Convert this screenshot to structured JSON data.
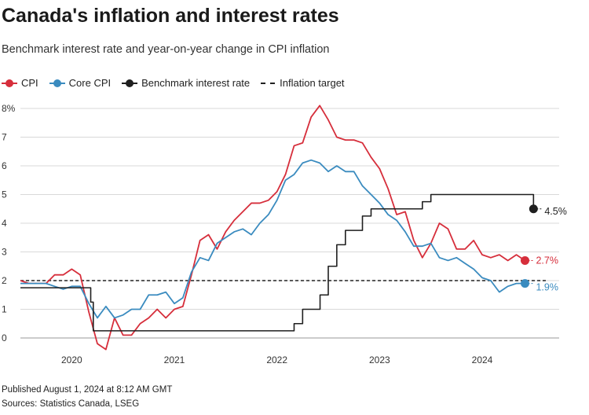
{
  "header": {
    "title": "Canada's inflation and interest rates",
    "subtitle": "Benchmark interest rate and year-on-year change in CPI inflation"
  },
  "legend": {
    "cpi": "CPI",
    "core_cpi": "Core CPI",
    "benchmark": "Benchmark interest rate",
    "target": "Inflation target"
  },
  "colors": {
    "cpi": "#d62e3b",
    "core_cpi": "#3a8bbf",
    "benchmark": "#1f1f1f",
    "target": "#222222",
    "grid": "#d9d9d9"
  },
  "footer": {
    "published": "Published August 1, 2024 at 8:12 AM GMT",
    "sources": "Sources: Statistics Canada, LSEG"
  },
  "chart_data": {
    "type": "line",
    "title": "Canada's inflation and interest rates",
    "subtitle": "Benchmark interest rate and year-on-year change in CPI inflation",
    "xlabel": "",
    "ylabel": "",
    "xlim": [
      2019.5,
      2024.75
    ],
    "ylim": [
      0,
      8
    ],
    "y_ticks": [
      0,
      1,
      2,
      3,
      4,
      5,
      6,
      7,
      8
    ],
    "y_tick_labels": [
      "0",
      "1",
      "2",
      "3",
      "4",
      "5",
      "6",
      "7",
      "8%"
    ],
    "x_ticks": [
      2020,
      2021,
      2022,
      2023,
      2024
    ],
    "x_tick_labels": [
      "2020",
      "2021",
      "2022",
      "2023",
      "2024"
    ],
    "grid": true,
    "legend_position": "top-left",
    "inflation_target": 2,
    "series": [
      {
        "name": "CPI",
        "kind": "line",
        "x": [
          2019.5,
          2019.583,
          2019.667,
          2019.75,
          2019.833,
          2019.917,
          2020.0,
          2020.083,
          2020.167,
          2020.25,
          2020.333,
          2020.417,
          2020.5,
          2020.583,
          2020.667,
          2020.75,
          2020.833,
          2020.917,
          2021.0,
          2021.083,
          2021.167,
          2021.25,
          2021.333,
          2021.417,
          2021.5,
          2021.583,
          2021.667,
          2021.75,
          2021.833,
          2021.917,
          2022.0,
          2022.083,
          2022.167,
          2022.25,
          2022.333,
          2022.417,
          2022.5,
          2022.583,
          2022.667,
          2022.75,
          2022.833,
          2022.917,
          2023.0,
          2023.083,
          2023.167,
          2023.25,
          2023.333,
          2023.417,
          2023.5,
          2023.583,
          2023.667,
          2023.75,
          2023.833,
          2023.917,
          2024.0,
          2024.083,
          2024.167,
          2024.25,
          2024.333,
          2024.417
        ],
        "y": [
          2.0,
          1.9,
          1.9,
          1.9,
          2.2,
          2.2,
          2.4,
          2.2,
          0.9,
          -0.2,
          -0.4,
          0.7,
          0.1,
          0.1,
          0.5,
          0.7,
          1.0,
          0.7,
          1.0,
          1.1,
          2.2,
          3.4,
          3.6,
          3.1,
          3.7,
          4.1,
          4.4,
          4.7,
          4.7,
          4.8,
          5.1,
          5.7,
          6.7,
          6.8,
          7.7,
          8.1,
          7.6,
          7.0,
          6.9,
          6.9,
          6.8,
          6.3,
          5.9,
          5.2,
          4.3,
          4.4,
          3.4,
          2.8,
          3.3,
          4.0,
          3.8,
          3.1,
          3.1,
          3.4,
          2.9,
          2.8,
          2.9,
          2.7,
          2.9,
          2.7
        ],
        "last_label": "2.7%"
      },
      {
        "name": "Core CPI",
        "kind": "line",
        "x": [
          2019.5,
          2019.583,
          2019.667,
          2019.75,
          2019.833,
          2019.917,
          2020.0,
          2020.083,
          2020.167,
          2020.25,
          2020.333,
          2020.417,
          2020.5,
          2020.583,
          2020.667,
          2020.75,
          2020.833,
          2020.917,
          2021.0,
          2021.083,
          2021.167,
          2021.25,
          2021.333,
          2021.417,
          2021.5,
          2021.583,
          2021.667,
          2021.75,
          2021.833,
          2021.917,
          2022.0,
          2022.083,
          2022.167,
          2022.25,
          2022.333,
          2022.417,
          2022.5,
          2022.583,
          2022.667,
          2022.75,
          2022.833,
          2022.917,
          2023.0,
          2023.083,
          2023.167,
          2023.25,
          2023.333,
          2023.417,
          2023.5,
          2023.583,
          2023.667,
          2023.75,
          2023.833,
          2023.917,
          2024.0,
          2024.083,
          2024.167,
          2024.25,
          2024.333,
          2024.417
        ],
        "y": [
          1.9,
          1.9,
          1.9,
          1.9,
          1.8,
          1.7,
          1.8,
          1.8,
          1.2,
          0.7,
          1.1,
          0.7,
          0.8,
          1.0,
          1.0,
          1.5,
          1.5,
          1.6,
          1.2,
          1.4,
          2.3,
          2.8,
          2.7,
          3.3,
          3.5,
          3.7,
          3.8,
          3.6,
          4.0,
          4.3,
          4.8,
          5.5,
          5.7,
          6.1,
          6.2,
          6.1,
          5.8,
          6.0,
          5.8,
          5.8,
          5.3,
          5.0,
          4.7,
          4.3,
          4.1,
          3.7,
          3.2,
          3.2,
          3.3,
          2.8,
          2.7,
          2.8,
          2.6,
          2.4,
          2.1,
          2.0,
          1.6,
          1.8,
          1.9,
          1.9
        ],
        "last_label": "1.9%"
      },
      {
        "name": "Benchmark interest rate",
        "kind": "step",
        "x": [
          2019.5,
          2020.167,
          2020.185,
          2020.21,
          2021.0,
          2022.0,
          2022.167,
          2022.25,
          2022.42,
          2022.5,
          2022.583,
          2022.667,
          2022.75,
          2022.833,
          2022.917,
          2023.083,
          2023.417,
          2023.5,
          2024.417,
          2024.5
        ],
        "y": [
          1.75,
          1.75,
          1.25,
          0.25,
          0.25,
          0.25,
          0.5,
          1.0,
          1.5,
          2.5,
          3.25,
          3.75,
          3.75,
          4.25,
          4.5,
          4.5,
          4.75,
          5.0,
          5.0,
          4.5
        ],
        "last_label": "4.5%"
      }
    ]
  }
}
